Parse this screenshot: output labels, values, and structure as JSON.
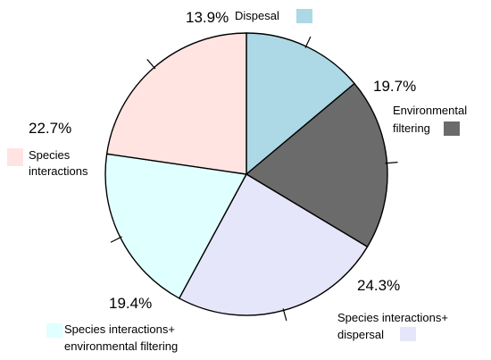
{
  "chart_data": {
    "type": "pie",
    "title": "",
    "slices": [
      {
        "label": "Dispesal",
        "value": 13.9,
        "display": "13.9%",
        "color": "#add8e6"
      },
      {
        "label": "Environmental filtering",
        "label_lines": [
          "Environmental",
          "filtering"
        ],
        "value": 19.7,
        "display": "19.7%",
        "color": "#6b6b6b"
      },
      {
        "label": "Species interactions+ dispersal",
        "label_lines": [
          "Species interactions+",
          "dispersal"
        ],
        "value": 24.3,
        "display": "24.3%",
        "color": "#e6e6fa"
      },
      {
        "label": "Species interactions+ environmental filtering",
        "label_lines": [
          "Species interactions+",
          "environmental filtering"
        ],
        "value": 19.4,
        "display": "19.4%",
        "color": "#e0ffff"
      },
      {
        "label": "Species interactions",
        "label_lines": [
          "Species",
          "interactions"
        ],
        "value": 22.7,
        "display": "22.7%",
        "color": "#ffe4e1"
      }
    ],
    "start_angle_deg": -90,
    "direction": "clockwise",
    "legend": "labels next to slices with color swatches"
  }
}
